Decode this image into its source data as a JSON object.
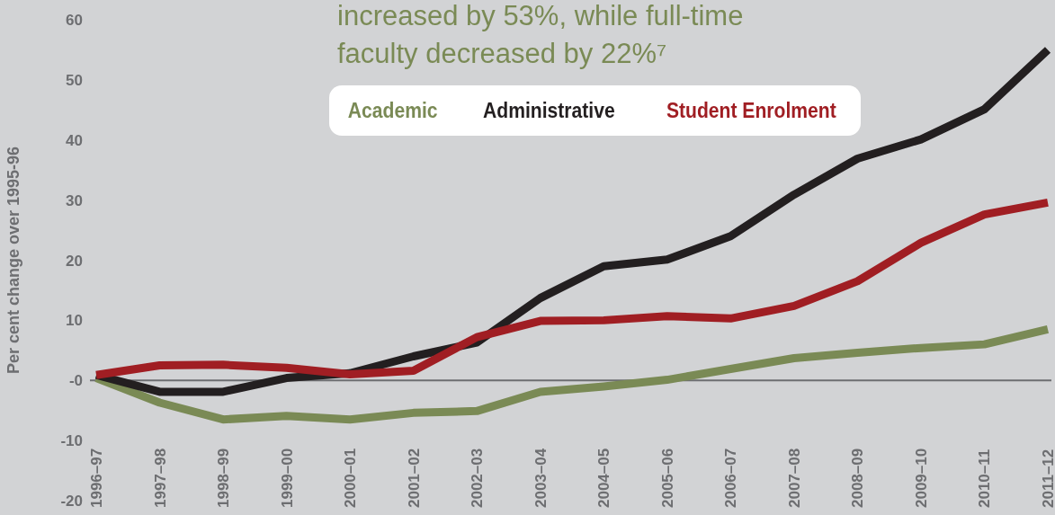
{
  "chart_data": {
    "type": "line",
    "ylabel": "Per cent change over 1995-96",
    "annotations": [
      "increased by 53%, while full-time faculty decreased by 22%⁷"
    ],
    "categories": [
      "1996–97",
      "1997–98",
      "1998–99",
      "1999–00",
      "2000–01",
      "2001–02",
      "2002–03",
      "2003–04",
      "2004–05",
      "2005–06",
      "2006–07",
      "2007–08",
      "2008–09",
      "2009–10",
      "2010–11",
      "2011–12"
    ],
    "series": [
      {
        "name": "Academic",
        "color": "#7a8a55",
        "values": [
          0.4,
          -3.7,
          -6.5,
          -5.9,
          -6.5,
          -5.4,
          -5.1,
          -1.9,
          -1.0,
          0.1,
          1.9,
          3.7,
          4.6,
          5.4,
          6.0,
          8.5
        ]
      },
      {
        "name": "Administrative",
        "color": "#231f20",
        "values": [
          0.9,
          -1.9,
          -1.9,
          0.4,
          1.2,
          4.0,
          6.3,
          13.7,
          19.0,
          20.1,
          24.0,
          30.9,
          36.9,
          40.1,
          45.1,
          55.0
        ]
      },
      {
        "name": "Student Enrolment",
        "color": "#a01e23",
        "values": [
          0.9,
          2.5,
          2.6,
          2.1,
          1.0,
          1.6,
          7.2,
          9.9,
          10.0,
          10.7,
          10.3,
          12.4,
          16.5,
          22.9,
          27.6,
          29.6
        ]
      }
    ],
    "ylim": [
      -20,
      60
    ],
    "yticks": [
      -20,
      -10,
      {
        "value": 0,
        "label": "-0"
      },
      10,
      20,
      30,
      40,
      50,
      60
    ],
    "ref_lines": [
      {
        "axis": "y",
        "value": 0,
        "color": "#6d6e71"
      }
    ],
    "legend": "top",
    "marker": "none",
    "line_style": "solid"
  }
}
